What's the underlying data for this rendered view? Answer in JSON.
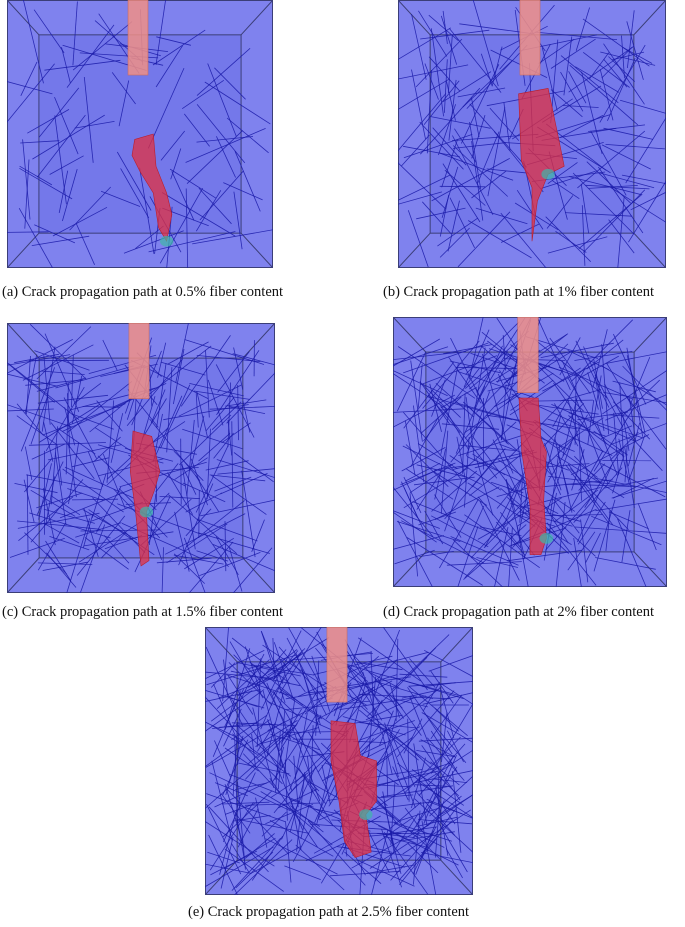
{
  "figure": {
    "panels": [
      {
        "id": "a",
        "caption": "(a) Crack propagation path at 0.5% fiber content",
        "fiber_content": 0.5
      },
      {
        "id": "b",
        "caption": "(b) Crack propagation path at 1% fiber content",
        "fiber_content": 1.0
      },
      {
        "id": "c",
        "caption": "(c) Crack propagation path at 1.5% fiber content",
        "fiber_content": 1.5
      },
      {
        "id": "d",
        "caption": "(d) Crack propagation path at 2% fiber content",
        "fiber_content": 2.0
      },
      {
        "id": "e",
        "caption": "(e) Crack propagation path at 2.5% fiber content",
        "fiber_content": 2.5
      }
    ],
    "colors": {
      "specimen_face": "#7f82ee",
      "specimen_inner": "#7478ea",
      "edge": "#3b3e78",
      "fiber": "#1a1aa8",
      "notch": "#f08f86",
      "crack": "#e23040",
      "crack_tip": "#3fb6a8"
    }
  }
}
